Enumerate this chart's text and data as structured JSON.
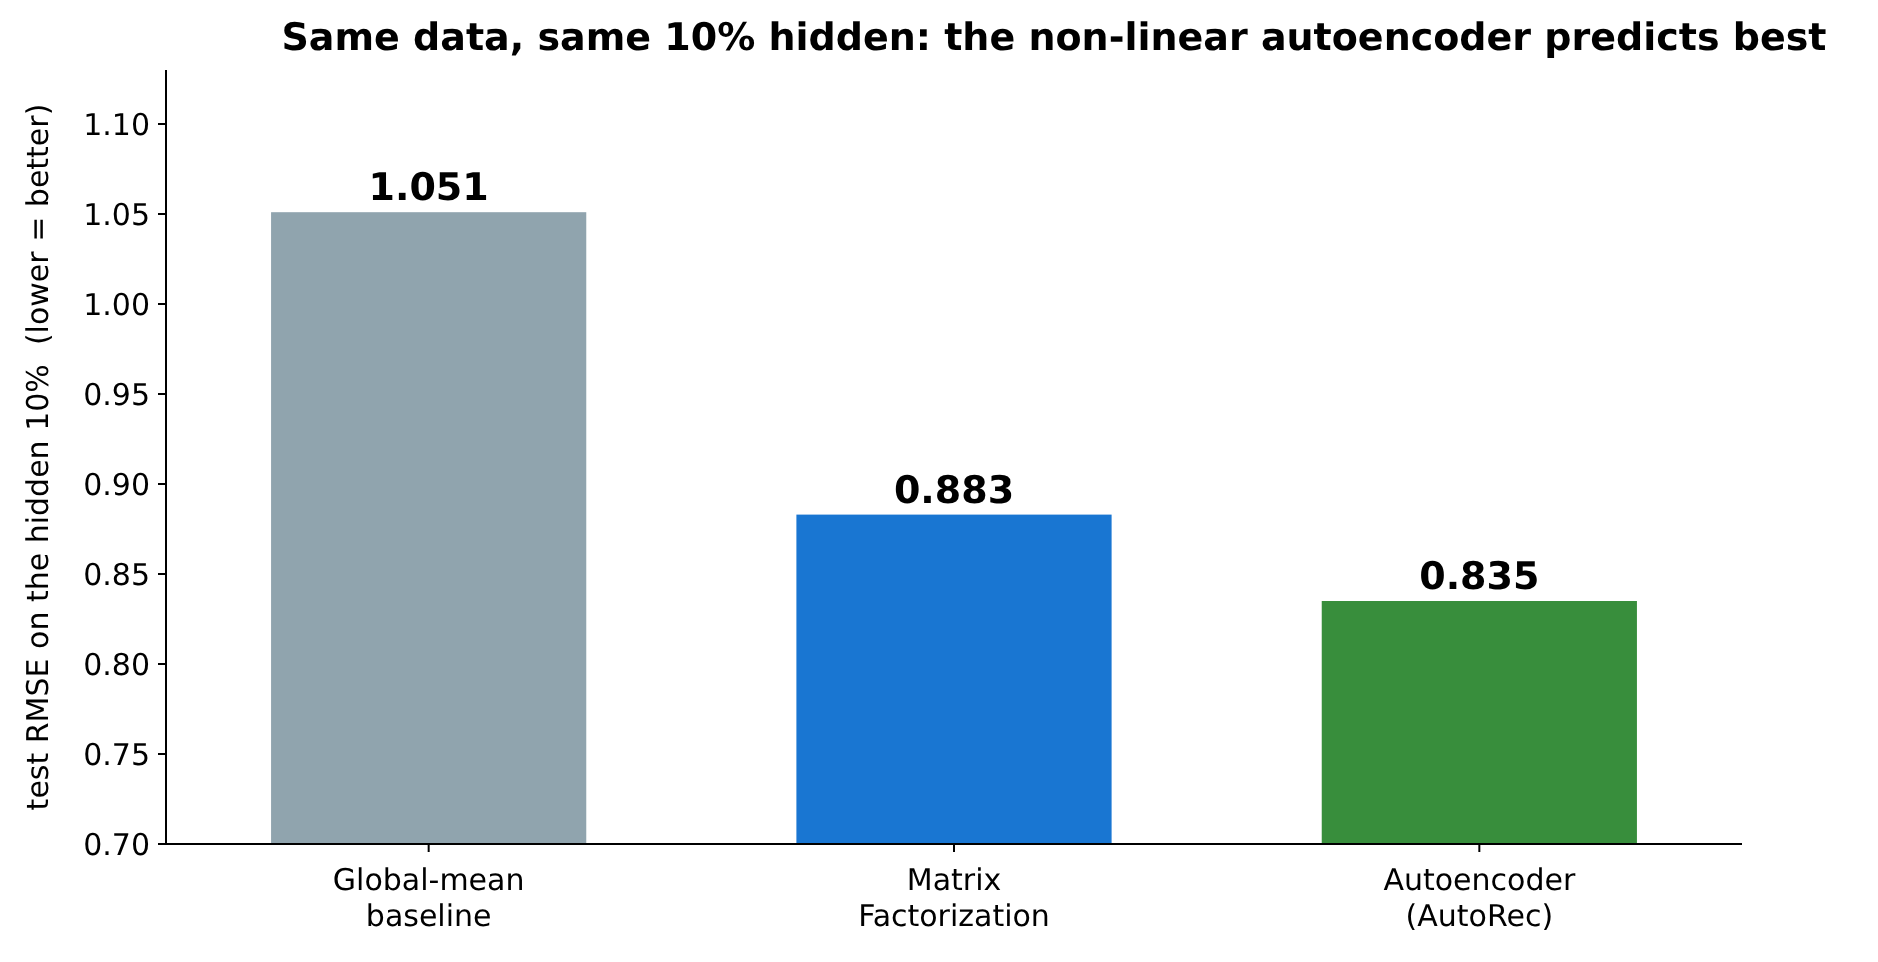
{
  "chart_data": {
    "type": "bar",
    "title": "Same data, same 10% hidden: the non-linear autoencoder predicts best",
    "ylabel": "test RMSE on the hidden 10%  (lower = better)",
    "categories": [
      "Global-mean\nbaseline",
      "Matrix\nFactorization",
      "Autoencoder\n(AutoRec)"
    ],
    "values": [
      1.051,
      0.883,
      0.835
    ],
    "colors": [
      "#90a4ae",
      "#1976d2",
      "#388e3c"
    ],
    "data_labels": true,
    "ylim": [
      0.7,
      1.13
    ],
    "yticks": [
      {
        "value": 0.7,
        "label": "0.70"
      },
      {
        "value": 0.75,
        "label": "0.75"
      },
      {
        "value": 0.8,
        "label": "0.80"
      },
      {
        "value": 0.85,
        "label": "0.85"
      },
      {
        "value": 0.9,
        "label": "0.90"
      },
      {
        "value": 0.95,
        "label": "0.95"
      },
      {
        "value": 1.0,
        "label": "1.00"
      },
      {
        "value": 1.05,
        "label": "1.05"
      },
      {
        "value": 1.1,
        "label": "1.10"
      }
    ],
    "grid": false
  }
}
